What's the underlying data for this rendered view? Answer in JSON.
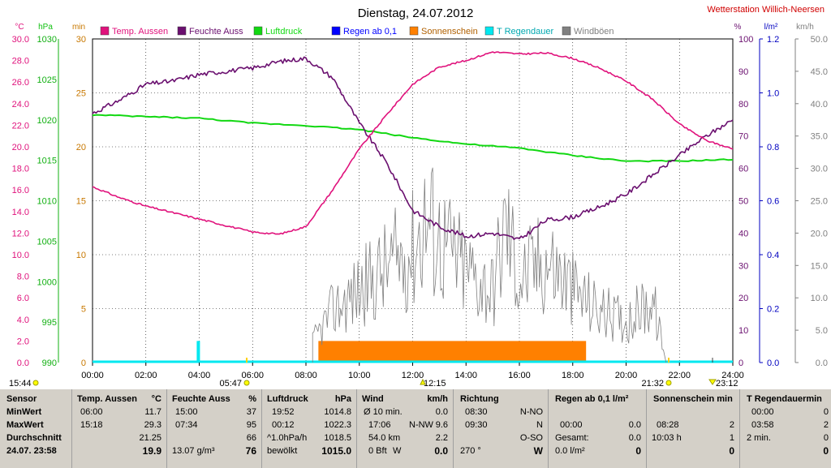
{
  "title": "Dienstag, 24.07.2012",
  "station": "Wetterstation Willich-Neersen",
  "colors": {
    "temp": "#e0127c",
    "hum": "#6a0f6f",
    "press": "#12d812",
    "rain": "#0000ff",
    "sun": "#ff8000",
    "raindur": "#00e8f0",
    "gust": "#808080",
    "min": "#c87800"
  },
  "axes": {
    "temp": {
      "unit": "°C",
      "ticks": [
        "30.0",
        "28.0",
        "26.0",
        "24.0",
        "22.0",
        "20.0",
        "18.0",
        "16.0",
        "14.0",
        "12.0",
        "10.0",
        "8.0",
        "6.0",
        "4.0",
        "2.0",
        "0.0"
      ]
    },
    "press": {
      "unit": "hPa",
      "ticks": [
        "1030",
        "1025",
        "1020",
        "1015",
        "1010",
        "1005",
        "1000",
        "995",
        "990"
      ]
    },
    "min": {
      "unit": "min",
      "ticks": [
        "30",
        "25",
        "20",
        "15",
        "10",
        "5",
        "0"
      ]
    },
    "hum": {
      "unit": "%",
      "ticks": [
        "100",
        "90",
        "80",
        "70",
        "60",
        "50",
        "40",
        "30",
        "20",
        "10",
        "0"
      ]
    },
    "rain": {
      "unit": "l/m²",
      "ticks": [
        "1.2",
        "1.0",
        "0.8",
        "0.6",
        "0.4",
        "0.2",
        "0.0"
      ]
    },
    "wind": {
      "unit": "km/h",
      "ticks": [
        "50.0",
        "45.0",
        "40.0",
        "35.0",
        "30.0",
        "25.0",
        "20.0",
        "15.0",
        "10.0",
        "5.0",
        "0.0"
      ]
    },
    "x": {
      "ticks": [
        "00:00",
        "02:00",
        "04:00",
        "06:00",
        "08:00",
        "10:00",
        "12:00",
        "14:00",
        "16:00",
        "18:00",
        "20:00",
        "22:00",
        "24:00"
      ]
    }
  },
  "legend": [
    "Temp. Aussen",
    "Feuchte Auss",
    "Luftdruck",
    "Regen ab 0,1",
    "Sonnenschein",
    "T Regendauer",
    "Windböen"
  ],
  "markers": {
    "moonrise": "15:44",
    "sunrise": "05:47",
    "noon": "12:15",
    "sunset": "21:32",
    "moonset": "23:12"
  },
  "chart_data": {
    "type": "line",
    "x_range": [
      "00:00",
      "24:00"
    ],
    "series": [
      {
        "name": "Temp. Aussen",
        "unit": "°C",
        "x": [
          "00:00",
          "01:00",
          "02:00",
          "03:00",
          "04:00",
          "05:00",
          "06:00",
          "07:00",
          "08:00",
          "09:00",
          "10:00",
          "11:00",
          "12:00",
          "13:00",
          "14:00",
          "15:00",
          "16:00",
          "17:00",
          "18:00",
          "19:00",
          "20:00",
          "21:00",
          "22:00",
          "23:00",
          "24:00"
        ],
        "values": [
          16.3,
          15.3,
          14.5,
          13.9,
          13.3,
          12.7,
          12.1,
          11.9,
          12.6,
          16.0,
          19.8,
          22.9,
          25.8,
          27.4,
          28.0,
          28.8,
          28.6,
          28.7,
          28.2,
          27.3,
          26.1,
          24.4,
          22.1,
          20.6,
          19.8
        ]
      },
      {
        "name": "Feuchte Auss",
        "unit": "%",
        "x": [
          "00:00",
          "01:00",
          "02:00",
          "03:00",
          "04:00",
          "05:00",
          "06:00",
          "07:00",
          "08:00",
          "09:00",
          "10:00",
          "11:00",
          "12:00",
          "13:00",
          "14:00",
          "15:00",
          "16:00",
          "17:00",
          "18:00",
          "19:00",
          "20:00",
          "21:00",
          "22:00",
          "23:00",
          "24:00"
        ],
        "values": [
          77,
          81,
          86,
          87,
          89,
          90,
          91,
          93,
          94,
          88,
          74,
          62,
          47,
          42,
          39,
          40,
          38,
          44,
          45,
          48,
          52,
          58,
          64,
          70,
          75
        ]
      },
      {
        "name": "Luftdruck",
        "unit": "hPa",
        "x": [
          "00:00",
          "02:00",
          "04:00",
          "06:00",
          "08:00",
          "10:00",
          "12:00",
          "14:00",
          "16:00",
          "18:00",
          "20:00",
          "22:00",
          "24:00"
        ],
        "values": [
          1020.6,
          1020.4,
          1020.2,
          1019.6,
          1019.3,
          1018.8,
          1017.8,
          1017.0,
          1016.5,
          1015.6,
          1014.9,
          1014.9,
          1015.1
        ]
      },
      {
        "name": "Sonnenschein",
        "unit": "min",
        "x": [
          "08:28",
          "18:30"
        ],
        "values": [
          2,
          2
        ]
      },
      {
        "name": "Windböen",
        "unit": "km/h",
        "x": [
          "08:15",
          "09:00",
          "10:00",
          "11:00",
          "12:00",
          "12:30",
          "13:00",
          "14:00",
          "15:00",
          "15:30",
          "16:00",
          "17:00",
          "18:00",
          "19:00",
          "20:00",
          "21:00",
          "21:30"
        ],
        "values": [
          4,
          10,
          14,
          18,
          22,
          28,
          24,
          18,
          14,
          27,
          16,
          20,
          14,
          10,
          8,
          12,
          0
        ]
      }
    ]
  },
  "table": {
    "sensor": {
      "header": "Sensor",
      "rows": [
        "MinWert",
        "MaxWert",
        "Durchschnitt",
        "24.07. 23:58"
      ]
    },
    "temp": {
      "header": "Temp. Aussen",
      "unit": "°C",
      "rows": [
        [
          "06:00",
          "11.7"
        ],
        [
          "15:18",
          "29.3"
        ],
        [
          "",
          "21.25"
        ],
        [
          "",
          "19.9"
        ]
      ]
    },
    "hum": {
      "header": "Feuchte Auss",
      "unit": "%",
      "rows": [
        [
          "15:00",
          "37"
        ],
        [
          "07:34",
          "95"
        ],
        [
          "",
          "66"
        ],
        [
          "13.07 g/m³",
          "76"
        ]
      ]
    },
    "press": {
      "header": "Luftdruck",
      "unit": "hPa",
      "rows": [
        [
          "19:52",
          "1014.8"
        ],
        [
          "00:12",
          "1022.3"
        ],
        [
          "^1.0hPa/h",
          "1018.5"
        ],
        [
          "bewölkt",
          "1015.0"
        ]
      ]
    },
    "wind": {
      "header": "Wind",
      "unit": "km/h",
      "rows": [
        [
          "Ø 10 min.",
          "",
          "0.0"
        ],
        [
          "17:06",
          "N-NW",
          "9.6"
        ],
        [
          "54.0 km",
          "",
          "2.2"
        ],
        [
          "0 Bft",
          "W",
          "0.0"
        ]
      ]
    },
    "dir": {
      "header": "Richtung",
      "rows": [
        [
          "08:30",
          "N-NO"
        ],
        [
          "09:30",
          "N"
        ],
        [
          "",
          "O-SO"
        ],
        [
          "270 °",
          "W"
        ]
      ]
    },
    "rain": {
      "header": "Regen ab 0,1  l/m²",
      "rows": [
        [
          "",
          ""
        ],
        [
          "00:00",
          "0.0"
        ],
        [
          "Gesamt:",
          "0.0"
        ],
        [
          "0.0 l/m²",
          "0"
        ]
      ]
    },
    "sun": {
      "header": "Sonnenschein min",
      "rows": [
        [
          "",
          ""
        ],
        [
          "08:28",
          "2"
        ],
        [
          "10:03 h",
          "1"
        ],
        [
          "",
          "0"
        ]
      ]
    },
    "raindur": {
      "header": "T Regendauermin",
      "rows": [
        [
          "00:00",
          "0"
        ],
        [
          "03:58",
          "2"
        ],
        [
          "2 min.",
          "0"
        ],
        [
          "",
          "0"
        ]
      ]
    }
  }
}
